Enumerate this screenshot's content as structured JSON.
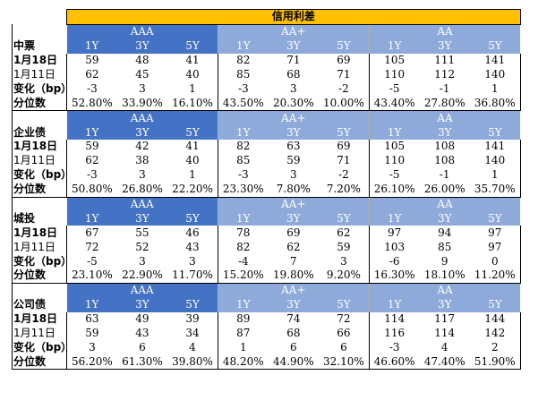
{
  "title": "信用利差",
  "ratings": [
    "AAA",
    "AA+",
    "AA"
  ],
  "tenors": [
    "1Y",
    "3Y",
    "5Y"
  ],
  "row_labels": {
    "current": "1月18日",
    "previous": "1月11日",
    "change": "变化（bp）",
    "percentile": "分位数"
  },
  "sections": [
    {
      "name": "中票",
      "current": [
        "59",
        "48",
        "41",
        "82",
        "71",
        "69",
        "105",
        "111",
        "141"
      ],
      "previous": [
        "62",
        "45",
        "40",
        "85",
        "68",
        "71",
        "110",
        "112",
        "140"
      ],
      "change": [
        "-3",
        "3",
        "1",
        "-3",
        "3",
        "-2",
        "-5",
        "-1",
        "1"
      ],
      "percentile": [
        "52.80%",
        "33.90%",
        "16.10%",
        "43.50%",
        "20.30%",
        "10.00%",
        "43.40%",
        "27.80%",
        "36.80%"
      ]
    },
    {
      "name": "企业债",
      "current": [
        "59",
        "42",
        "41",
        "82",
        "63",
        "69",
        "105",
        "108",
        "141"
      ],
      "previous": [
        "62",
        "38",
        "40",
        "85",
        "59",
        "71",
        "110",
        "108",
        "140"
      ],
      "change": [
        "-3",
        "3",
        "1",
        "-3",
        "3",
        "-2",
        "-5",
        "-1",
        "1"
      ],
      "percentile": [
        "50.80%",
        "26.80%",
        "22.20%",
        "23.30%",
        "7.80%",
        "7.20%",
        "26.10%",
        "26.00%",
        "35.70%"
      ]
    },
    {
      "name": "城投",
      "current": [
        "67",
        "55",
        "46",
        "78",
        "69",
        "62",
        "97",
        "94",
        "97"
      ],
      "previous": [
        "72",
        "52",
        "43",
        "82",
        "62",
        "59",
        "103",
        "85",
        "97"
      ],
      "change": [
        "-5",
        "3",
        "3",
        "-4",
        "7",
        "3",
        "-6",
        "9",
        "0"
      ],
      "percentile": [
        "23.10%",
        "22.90%",
        "11.70%",
        "15.20%",
        "19.80%",
        "9.20%",
        "16.30%",
        "18.10%",
        "11.20%"
      ]
    },
    {
      "name": "公司债",
      "current": [
        "63",
        "49",
        "39",
        "89",
        "74",
        "72",
        "114",
        "117",
        "144"
      ],
      "previous": [
        "59",
        "43",
        "34",
        "87",
        "68",
        "66",
        "116",
        "114",
        "142"
      ],
      "change": [
        "3",
        "6",
        "4",
        "1",
        "6",
        "6",
        "-3",
        "4",
        "2"
      ],
      "percentile": [
        "56.20%",
        "61.30%",
        "39.80%",
        "48.20%",
        "44.90%",
        "32.10%",
        "46.60%",
        "47.40%",
        "51.90%"
      ]
    }
  ]
}
